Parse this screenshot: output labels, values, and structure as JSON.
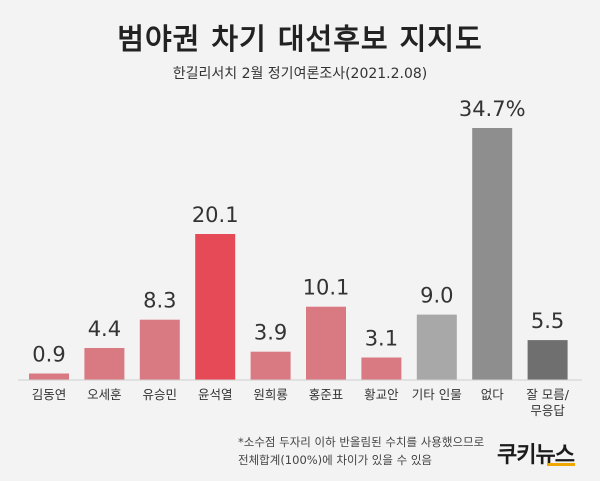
{
  "title": "범야권 차기 대선후보 지지도",
  "subtitle": "한길리서치 2월 정기여론조사(2021.2.08)",
  "footnote": {
    "line1": "*소수점 두자리 이하 반올림된 수치를 사용했으므로",
    "line2": "전체합계(100%)에 차이가 있을 수 있음"
  },
  "logo": {
    "text1": "쿠키",
    "text2": "뉴스"
  },
  "chart_data": {
    "type": "bar",
    "categories": [
      "김동연",
      "오세훈",
      "유승민",
      "윤석열",
      "원희룡",
      "홍준표",
      "황교안",
      "기타 인물",
      "없다",
      "잘 모름/\n무응답"
    ],
    "values": [
      0.9,
      4.4,
      8.3,
      20.1,
      3.9,
      10.1,
      3.1,
      9.0,
      34.7,
      5.5
    ],
    "value_labels": [
      "0.9",
      "4.4",
      "8.3",
      "20.1",
      "3.9",
      "10.1",
      "3.1",
      "9.0",
      "34.7%",
      "5.5"
    ],
    "colors": [
      "#d97a83",
      "#d97a83",
      "#d97a83",
      "#e64a56",
      "#d97a83",
      "#d97a83",
      "#d97a83",
      "#a8a8a8",
      "#8e8e8e",
      "#6f6f6f"
    ],
    "title": "범야권 차기 대선후보 지지도",
    "xlabel": "",
    "ylabel": "",
    "ylim": [
      0,
      34.7
    ],
    "grid": false
  }
}
